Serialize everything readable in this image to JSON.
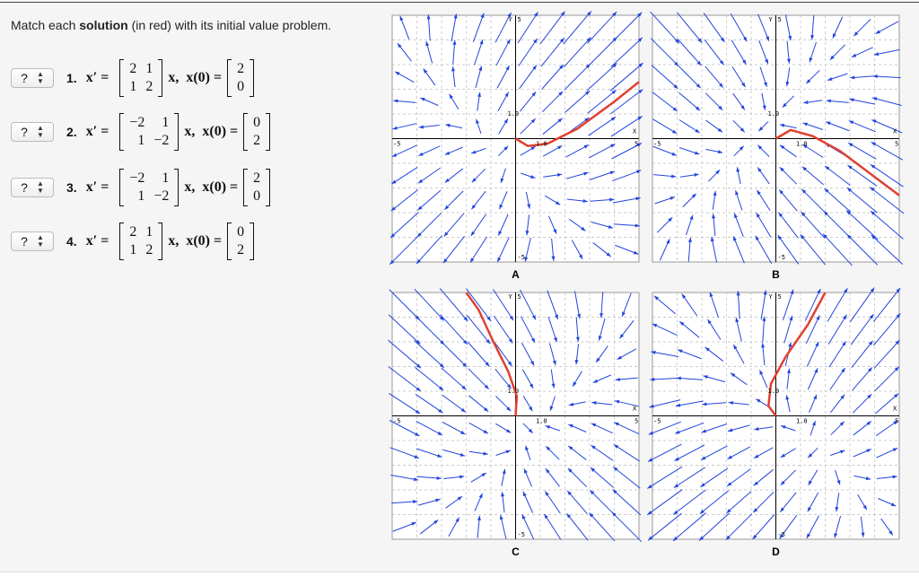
{
  "instruction": {
    "prefix": "Match each",
    "bold": "solution",
    "suffix": "(in red) with its initial value problem."
  },
  "problems": [
    {
      "select": "?",
      "number": "1.",
      "lhs": "x′ =",
      "matrix": [
        [
          "2",
          "1"
        ],
        [
          "1",
          "2"
        ]
      ],
      "mid": "x,  x(0) =",
      "init": [
        "2",
        "0"
      ]
    },
    {
      "select": "?",
      "number": "2.",
      "lhs": "x′ =",
      "matrix": [
        [
          "−2",
          "1"
        ],
        [
          "1",
          "−2"
        ]
      ],
      "mid": "x,  x(0) =",
      "init": [
        "0",
        "2"
      ]
    },
    {
      "select": "?",
      "number": "3.",
      "lhs": "x′ =",
      "matrix": [
        [
          "−2",
          "1"
        ],
        [
          "1",
          "−2"
        ]
      ],
      "mid": "x,  x(0) =",
      "init": [
        "2",
        "0"
      ]
    },
    {
      "select": "?",
      "number": "4.",
      "lhs": "x′ =",
      "matrix": [
        [
          "2",
          "1"
        ],
        [
          "1",
          "2"
        ]
      ],
      "mid": "x,  x(0) =",
      "init": [
        "0",
        "2"
      ]
    }
  ],
  "graphs": [
    {
      "label": "A",
      "y_axis": "Y",
      "x_axis": "X",
      "x_tick": "1.0",
      "y_tick": "1.0",
      "left": "-5",
      "right": "5",
      "bottom": "-5",
      "top": "5"
    },
    {
      "label": "B",
      "y_axis": "Y",
      "x_axis": "X",
      "x_tick": "1.0",
      "y_tick": "1.0",
      "left": "-5",
      "right": "5",
      "bottom": "-5",
      "top": "5"
    },
    {
      "label": "C",
      "y_axis": "Y",
      "x_axis": "X",
      "x_tick": "1.0",
      "y_tick": "1.0",
      "left": "-5",
      "right": "5",
      "bottom": "-5",
      "top": "5"
    },
    {
      "label": "D",
      "y_axis": "Y",
      "x_axis": "X",
      "x_tick": "1.0",
      "y_tick": "1.0",
      "left": "-5",
      "right": "5",
      "bottom": "-5",
      "top": "5"
    }
  ]
}
